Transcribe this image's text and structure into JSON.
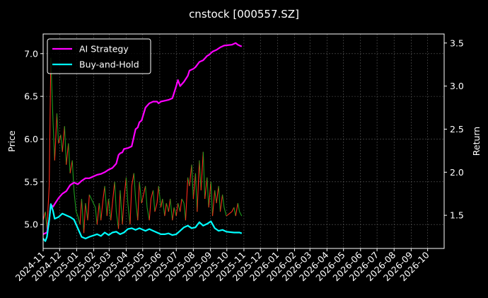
{
  "chart_data": {
    "type": "line",
    "title": "cnstock [000557.SZ]",
    "xlabel": "",
    "ylabel": "Price",
    "y2label": "Return",
    "grid": true,
    "legend_position": "top-left",
    "x_range": [
      "2024-11-01",
      "2026-10-31"
    ],
    "ylim": [
      4.72,
      7.23
    ],
    "y2lim": [
      1.115,
      3.605
    ],
    "x_ticks": [
      "2024-11",
      "2024-12",
      "2025-01",
      "2025-02",
      "2025-03",
      "2025-04",
      "2025-05",
      "2025-06",
      "2025-07",
      "2025-08",
      "2025-09",
      "2025-10",
      "2025-11",
      "2025-12",
      "2026-01",
      "2026-02",
      "2026-03",
      "2026-04",
      "2026-05",
      "2026-06",
      "2026-07",
      "2026-08",
      "2026-09",
      "2026-10"
    ],
    "y_ticks": [
      5.0,
      5.5,
      6.0,
      6.5,
      7.0
    ],
    "y_tick_labels": [
      "5.0",
      "5.5",
      "6.0",
      "6.5",
      "7.0"
    ],
    "y2_ticks": [
      1.5,
      2.0,
      2.5,
      3.0,
      3.5
    ],
    "y2_tick_labels": [
      "1.5",
      "2.0",
      "2.5",
      "3.0",
      "3.5"
    ],
    "price_series": {
      "name": "Price",
      "colors": {
        "up": "#ff2a1a",
        "down": "#1e9e1e"
      },
      "x": [
        "2024-11-01",
        "2024-11-05",
        "2024-11-08",
        "2024-11-12",
        "2024-11-15",
        "2024-11-19",
        "2024-11-22",
        "2024-11-26",
        "2024-11-29",
        "2024-12-03",
        "2024-12-06",
        "2024-12-10",
        "2024-12-13",
        "2024-12-17",
        "2024-12-20",
        "2024-12-24",
        "2024-12-27",
        "2024-12-31",
        "2025-01-03",
        "2025-01-07",
        "2025-01-10",
        "2025-01-14",
        "2025-01-17",
        "2025-01-21",
        "2025-01-24",
        "2025-02-04",
        "2025-02-07",
        "2025-02-11",
        "2025-02-14",
        "2025-02-18",
        "2025-02-21",
        "2025-02-25",
        "2025-02-28",
        "2025-03-04",
        "2025-03-07",
        "2025-03-11",
        "2025-03-14",
        "2025-03-18",
        "2025-03-21",
        "2025-03-25",
        "2025-03-28",
        "2025-04-01",
        "2025-04-04",
        "2025-04-08",
        "2025-04-11",
        "2025-04-15",
        "2025-04-18",
        "2025-04-22",
        "2025-04-25",
        "2025-04-29",
        "2025-05-06",
        "2025-05-09",
        "2025-05-13",
        "2025-05-16",
        "2025-05-20",
        "2025-05-23",
        "2025-05-27",
        "2025-05-30",
        "2025-06-03",
        "2025-06-06",
        "2025-06-10",
        "2025-06-13",
        "2025-06-17",
        "2025-06-20",
        "2025-06-24",
        "2025-06-27",
        "2025-07-01",
        "2025-07-04",
        "2025-07-08",
        "2025-07-11",
        "2025-07-15",
        "2025-07-18",
        "2025-07-22",
        "2025-07-25",
        "2025-07-29",
        "2025-08-01",
        "2025-08-05",
        "2025-08-08",
        "2025-08-12",
        "2025-08-15",
        "2025-08-19",
        "2025-08-22",
        "2025-08-26",
        "2025-08-29",
        "2025-09-02",
        "2025-09-05",
        "2025-09-09",
        "2025-09-12",
        "2025-09-16",
        "2025-09-19",
        "2025-09-23",
        "2025-09-26",
        "2025-09-30",
        "2025-10-10",
        "2025-10-14",
        "2025-10-17",
        "2025-10-21",
        "2025-10-24",
        "2025-10-28"
      ],
      "values": [
        5.05,
        5.15,
        4.95,
        5.45,
        6.95,
        6.2,
        5.75,
        6.3,
        5.95,
        6.05,
        5.85,
        6.15,
        5.7,
        5.95,
        5.6,
        5.75,
        5.4,
        5.15,
        5.1,
        5.0,
        5.3,
        4.9,
        5.25,
        5.05,
        5.35,
        5.2,
        5.0,
        5.25,
        5.05,
        5.3,
        5.45,
        5.1,
        5.3,
        5.05,
        5.25,
        5.5,
        5.15,
        4.95,
        5.4,
        5.0,
        5.3,
        5.55,
        5.25,
        5.0,
        5.45,
        5.6,
        5.3,
        5.05,
        5.5,
        5.25,
        5.45,
        5.2,
        5.05,
        5.3,
        5.4,
        5.15,
        5.25,
        5.45,
        5.2,
        5.3,
        5.1,
        5.25,
        5.15,
        5.3,
        5.05,
        5.2,
        5.1,
        5.25,
        5.15,
        5.3,
        5.25,
        5.05,
        5.55,
        5.45,
        5.7,
        5.3,
        5.6,
        5.15,
        5.75,
        5.4,
        5.85,
        5.3,
        5.55,
        5.2,
        5.5,
        5.1,
        5.4,
        5.25,
        5.45,
        5.15,
        5.35,
        5.2,
        5.1,
        5.15,
        5.2,
        5.1,
        5.25,
        5.15,
        5.1
      ]
    },
    "series": [
      {
        "name": "AI Strategy",
        "axis": "right",
        "color": "#ff00ff",
        "x": [
          "2024-11-01",
          "2024-11-08",
          "2024-11-12",
          "2024-11-15",
          "2024-11-19",
          "2024-11-22",
          "2024-11-29",
          "2024-12-06",
          "2024-12-13",
          "2024-12-20",
          "2024-12-27",
          "2025-01-03",
          "2025-01-10",
          "2025-01-17",
          "2025-01-24",
          "2025-02-07",
          "2025-02-14",
          "2025-02-21",
          "2025-02-28",
          "2025-03-07",
          "2025-03-14",
          "2025-03-18",
          "2025-03-21",
          "2025-03-25",
          "2025-03-28",
          "2025-04-04",
          "2025-04-11",
          "2025-04-18",
          "2025-04-22",
          "2025-04-25",
          "2025-04-29",
          "2025-05-06",
          "2025-05-13",
          "2025-05-20",
          "2025-05-27",
          "2025-05-30",
          "2025-06-03",
          "2025-06-10",
          "2025-06-17",
          "2025-06-24",
          "2025-07-01",
          "2025-07-04",
          "2025-07-08",
          "2025-07-15",
          "2025-07-22",
          "2025-07-25",
          "2025-08-01",
          "2025-08-05",
          "2025-08-12",
          "2025-08-19",
          "2025-08-26",
          "2025-08-29",
          "2025-09-05",
          "2025-09-12",
          "2025-09-19",
          "2025-09-26",
          "2025-10-10",
          "2025-10-17",
          "2025-10-21",
          "2025-10-24",
          "2025-10-28"
        ],
        "values": [
          1.28,
          1.3,
          1.45,
          1.62,
          1.6,
          1.63,
          1.7,
          1.75,
          1.78,
          1.85,
          1.88,
          1.86,
          1.9,
          1.93,
          1.93,
          1.97,
          1.98,
          2.0,
          2.03,
          2.05,
          2.1,
          2.2,
          2.22,
          2.23,
          2.27,
          2.28,
          2.3,
          2.5,
          2.52,
          2.58,
          2.6,
          2.75,
          2.8,
          2.82,
          2.82,
          2.8,
          2.82,
          2.83,
          2.84,
          2.86,
          3.0,
          3.07,
          3.0,
          3.05,
          3.12,
          3.18,
          3.2,
          3.22,
          3.28,
          3.3,
          3.35,
          3.36,
          3.4,
          3.42,
          3.45,
          3.47,
          3.48,
          3.5,
          3.48,
          3.47,
          3.46
        ]
      },
      {
        "name": "Buy-and-Hold",
        "axis": "right",
        "color": "#00ffff",
        "x": [
          "2024-11-01",
          "2024-11-05",
          "2024-11-08",
          "2024-11-12",
          "2024-11-15",
          "2024-11-19",
          "2024-11-22",
          "2024-11-29",
          "2024-12-06",
          "2024-12-13",
          "2024-12-20",
          "2024-12-27",
          "2025-01-03",
          "2025-01-10",
          "2025-01-17",
          "2025-01-24",
          "2025-02-07",
          "2025-02-14",
          "2025-02-21",
          "2025-02-28",
          "2025-03-07",
          "2025-03-14",
          "2025-03-21",
          "2025-03-28",
          "2025-04-04",
          "2025-04-11",
          "2025-04-18",
          "2025-04-25",
          "2025-05-06",
          "2025-05-13",
          "2025-05-20",
          "2025-05-27",
          "2025-06-03",
          "2025-06-10",
          "2025-06-17",
          "2025-06-24",
          "2025-07-01",
          "2025-07-08",
          "2025-07-15",
          "2025-07-22",
          "2025-07-29",
          "2025-08-05",
          "2025-08-12",
          "2025-08-19",
          "2025-08-26",
          "2025-09-02",
          "2025-09-09",
          "2025-09-16",
          "2025-09-23",
          "2025-09-30",
          "2025-10-14",
          "2025-10-21",
          "2025-10-24",
          "2025-10-28"
        ],
        "values": [
          1.23,
          1.2,
          1.25,
          1.45,
          1.63,
          1.55,
          1.46,
          1.48,
          1.52,
          1.5,
          1.48,
          1.45,
          1.35,
          1.25,
          1.23,
          1.25,
          1.28,
          1.26,
          1.3,
          1.27,
          1.3,
          1.31,
          1.28,
          1.3,
          1.34,
          1.35,
          1.33,
          1.35,
          1.32,
          1.34,
          1.32,
          1.3,
          1.28,
          1.28,
          1.29,
          1.27,
          1.28,
          1.32,
          1.36,
          1.38,
          1.35,
          1.36,
          1.42,
          1.38,
          1.4,
          1.43,
          1.35,
          1.32,
          1.33,
          1.31,
          1.3,
          1.3,
          1.3,
          1.29
        ]
      }
    ]
  }
}
